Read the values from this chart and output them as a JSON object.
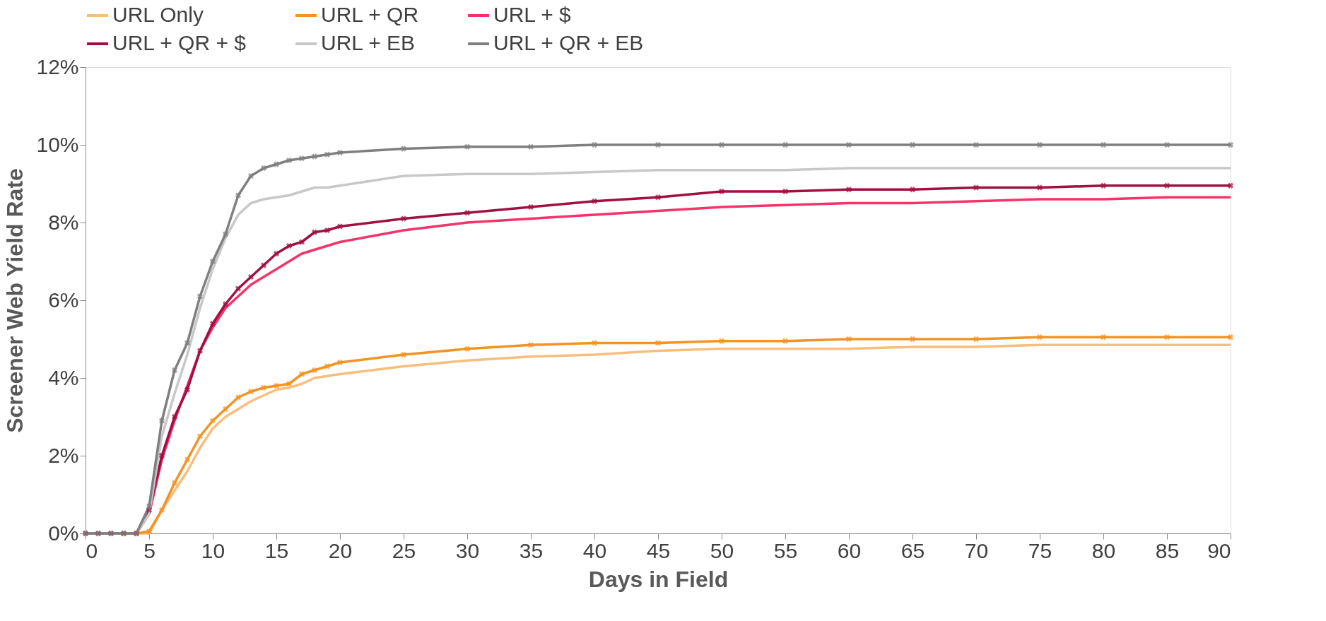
{
  "chart_data": {
    "type": "line",
    "xlabel": "Days in Field",
    "ylabel": "Screener Web Yield Rate",
    "x": [
      0,
      1,
      2,
      3,
      4,
      5,
      6,
      7,
      8,
      9,
      10,
      11,
      12,
      13,
      14,
      15,
      16,
      17,
      18,
      19,
      20,
      25,
      30,
      35,
      40,
      45,
      50,
      55,
      60,
      65,
      70,
      75,
      80,
      85,
      90
    ],
    "series": [
      {
        "name": "URL Only",
        "color": "#f9bd7c",
        "marker": "none",
        "values": [
          null,
          null,
          null,
          0,
          0,
          0.0,
          0.6,
          1.1,
          1.6,
          2.2,
          2.7,
          3.0,
          3.2,
          3.4,
          3.55,
          3.7,
          3.75,
          3.85,
          4.0,
          4.05,
          4.1,
          4.3,
          4.45,
          4.55,
          4.6,
          4.7,
          4.75,
          4.75,
          4.75,
          4.8,
          4.8,
          4.85,
          4.85,
          4.85,
          4.85
        ]
      },
      {
        "name": "URL + QR",
        "color": "#f39323",
        "marker": "cross",
        "values": [
          null,
          null,
          null,
          0,
          0,
          0.05,
          0.6,
          1.3,
          1.9,
          2.5,
          2.9,
          3.2,
          3.5,
          3.65,
          3.75,
          3.8,
          3.85,
          4.1,
          4.2,
          4.3,
          4.4,
          4.6,
          4.75,
          4.85,
          4.9,
          4.9,
          4.95,
          4.95,
          5.0,
          5.0,
          5.0,
          5.05,
          5.05,
          5.05,
          5.05
        ]
      },
      {
        "name": "URL + $",
        "color": "#f5336a",
        "marker": "none",
        "values": [
          null,
          null,
          null,
          null,
          0,
          0.5,
          1.9,
          2.9,
          3.8,
          4.7,
          5.3,
          5.8,
          6.1,
          6.4,
          6.6,
          6.8,
          7.0,
          7.2,
          7.3,
          7.4,
          7.5,
          7.8,
          8.0,
          8.1,
          8.2,
          8.3,
          8.4,
          8.45,
          8.5,
          8.5,
          8.55,
          8.6,
          8.6,
          8.65,
          8.65
        ]
      },
      {
        "name": "URL + QR + $",
        "color": "#a01042",
        "marker": "cross",
        "values": [
          0,
          0,
          0,
          0,
          0,
          0.6,
          2.0,
          3.0,
          3.7,
          4.7,
          5.4,
          5.9,
          6.3,
          6.6,
          6.9,
          7.2,
          7.4,
          7.5,
          7.75,
          7.8,
          7.9,
          8.1,
          8.25,
          8.4,
          8.55,
          8.65,
          8.8,
          8.8,
          8.85,
          8.85,
          8.9,
          8.9,
          8.95,
          8.95,
          8.95
        ]
      },
      {
        "name": "URL + EB",
        "color": "#c8c8c8",
        "marker": "none",
        "values": [
          0,
          0,
          0,
          0,
          0,
          0.5,
          2.5,
          3.6,
          4.6,
          5.8,
          6.8,
          7.6,
          8.2,
          8.5,
          8.6,
          8.65,
          8.7,
          8.8,
          8.9,
          8.9,
          8.95,
          9.2,
          9.25,
          9.25,
          9.3,
          9.35,
          9.35,
          9.35,
          9.4,
          9.4,
          9.4,
          9.4,
          9.4,
          9.4,
          9.4
        ]
      },
      {
        "name": "URL + QR + EB",
        "color": "#7f7f7f",
        "marker": "cross",
        "values": [
          0,
          0,
          0,
          0,
          0,
          0.7,
          2.9,
          4.2,
          4.9,
          6.1,
          7.0,
          7.7,
          8.7,
          9.2,
          9.4,
          9.5,
          9.6,
          9.65,
          9.7,
          9.75,
          9.8,
          9.9,
          9.95,
          9.95,
          10.0,
          10.0,
          10.0,
          10.0,
          10.0,
          10.0,
          10.0,
          10.0,
          10.0,
          10.0,
          10.0
        ]
      }
    ],
    "xlim": [
      0,
      90
    ],
    "xticks": [
      0,
      5,
      10,
      15,
      20,
      25,
      30,
      35,
      40,
      45,
      50,
      55,
      60,
      65,
      70,
      75,
      80,
      85,
      90
    ],
    "ylim": [
      0,
      12
    ],
    "yticks": [
      {
        "value": 0,
        "label": "0%"
      },
      {
        "value": 2,
        "label": "2%"
      },
      {
        "value": 4,
        "label": "4%"
      },
      {
        "value": 6,
        "label": "6%"
      },
      {
        "value": 8,
        "label": "8%"
      },
      {
        "value": 10,
        "label": "10%"
      },
      {
        "value": 12,
        "label": "12%"
      }
    ],
    "grid": false,
    "legend": "top",
    "line_style": "solid"
  }
}
